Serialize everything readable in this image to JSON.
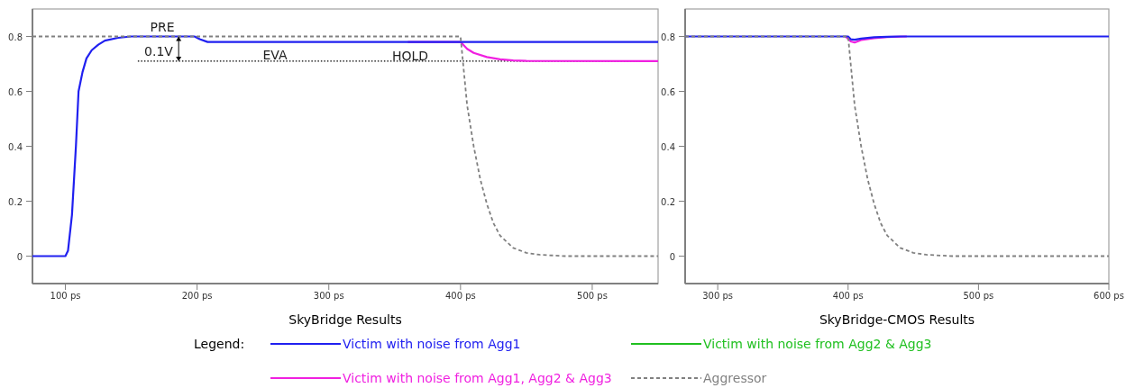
{
  "chart_data": [
    {
      "type": "line",
      "xlabel": "SkyBridge Results",
      "legend_title": "Legend:",
      "legend": "bottom",
      "xlim": [
        75,
        550
      ],
      "xticks": [
        {
          "value": 100,
          "label": "100 ps"
        },
        {
          "value": 200,
          "label": "200 ps"
        },
        {
          "value": 300,
          "label": "300 ps"
        },
        {
          "value": 400,
          "label": "400 ps"
        },
        {
          "value": 500,
          "label": "500 ps"
        }
      ],
      "ylim": [
        -0.1,
        0.9
      ],
      "yticks": [
        0,
        0.2,
        0.4,
        0.6,
        0.8
      ],
      "ref_lines": [
        {
          "axis": "y",
          "value": 0.71,
          "color": "#000000",
          "line_style": "dotted"
        }
      ],
      "annotations": [
        "PRE",
        "0.1V",
        "EVA",
        "HOLD"
      ],
      "series": [
        {
          "name": "Victim with noise from Agg1",
          "color": "#2020f0",
          "x": [
            75,
            100,
            102,
            105,
            108,
            110,
            113,
            116,
            120,
            125,
            130,
            140,
            150,
            198,
            202,
            208,
            400,
            550
          ],
          "values": [
            0,
            0,
            0.02,
            0.15,
            0.4,
            0.6,
            0.67,
            0.72,
            0.75,
            0.77,
            0.785,
            0.795,
            0.8,
            0.8,
            0.79,
            0.78,
            0.78,
            0.78
          ]
        },
        {
          "name": "Victim with noise from Agg2 & Agg3",
          "color": "#20c020"
        },
        {
          "name": "Victim with noise from Agg1, Agg2 & Agg3",
          "color": "#f020e0",
          "x": [
            360,
            400,
            405,
            410,
            420,
            430,
            440,
            450,
            550
          ],
          "values": [
            0.78,
            0.78,
            0.755,
            0.74,
            0.725,
            0.717,
            0.713,
            0.711,
            0.71
          ]
        },
        {
          "name": "Aggressor",
          "color": "#808080",
          "line_style": "dashed",
          "x": [
            75,
            400,
            402,
            405,
            410,
            415,
            420,
            425,
            430,
            440,
            450,
            460,
            480,
            550
          ],
          "values": [
            0.8,
            0.8,
            0.7,
            0.55,
            0.4,
            0.28,
            0.19,
            0.12,
            0.075,
            0.03,
            0.012,
            0.005,
            0,
            0
          ]
        }
      ]
    },
    {
      "type": "line",
      "xlabel": "SkyBridge-CMOS Results",
      "xlim": [
        275,
        600
      ],
      "xticks": [
        {
          "value": 300,
          "label": "300 ps"
        },
        {
          "value": 400,
          "label": "400 ps"
        },
        {
          "value": 500,
          "label": "500 ps"
        },
        {
          "value": 600,
          "label": "600 ps"
        }
      ],
      "ylim": [
        -0.1,
        0.9
      ],
      "yticks": [
        0,
        0.2,
        0.4,
        0.6,
        0.8
      ],
      "series": [
        {
          "color": "#2020f0",
          "x": [
            275,
            400,
            402,
            405,
            410,
            420,
            430,
            440,
            600
          ],
          "values": [
            0.8,
            0.8,
            0.79,
            0.788,
            0.792,
            0.797,
            0.799,
            0.8,
            0.8
          ]
        },
        {
          "color": "#f020e0",
          "x": [
            398,
            402,
            405,
            410,
            420,
            430,
            445
          ],
          "values": [
            0.8,
            0.782,
            0.778,
            0.787,
            0.794,
            0.798,
            0.8
          ]
        },
        {
          "color": "#808080",
          "line_style": "dashed",
          "x": [
            275,
            400,
            402,
            405,
            410,
            415,
            420,
            425,
            430,
            440,
            450,
            460,
            480,
            600
          ],
          "values": [
            0.8,
            0.8,
            0.7,
            0.55,
            0.4,
            0.28,
            0.19,
            0.12,
            0.075,
            0.03,
            0.012,
            0.005,
            0,
            0
          ]
        }
      ]
    }
  ]
}
